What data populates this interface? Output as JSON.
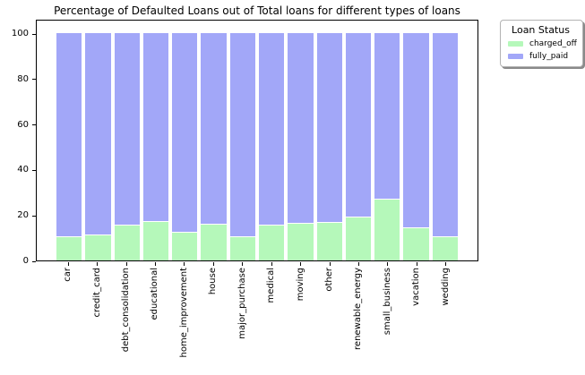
{
  "legend": {
    "title": "Loan Status",
    "items": [
      {
        "label": "charged_off",
        "color": "#b5f8ba"
      },
      {
        "label": "fully_paid",
        "color": "#a2a7f8"
      }
    ]
  },
  "axes": {
    "yticks": [
      0,
      20,
      40,
      60,
      80,
      100
    ]
  },
  "chart_data": {
    "type": "bar",
    "stacked": true,
    "normalized_percent": true,
    "title": "Percentage of Defaulted Loans out of Total loans for different types of loans",
    "xlabel": "",
    "ylabel": "",
    "grid": false,
    "legend_position": "upper-right-outside",
    "ylim": [
      0,
      106.4
    ],
    "categories": [
      "car",
      "credit_card",
      "debt_consolidation",
      "educational",
      "home_improvement",
      "house",
      "major_purchase",
      "medical",
      "moving",
      "other",
      "renewable_energy",
      "small_business",
      "vacation",
      "wedding"
    ],
    "series": [
      {
        "name": "charged_off",
        "color": "#b5f8ba",
        "values": [
          10.4,
          11.2,
          15.5,
          17.0,
          12.1,
          15.9,
          10.3,
          15.5,
          16.0,
          16.4,
          18.8,
          27.0,
          14.1,
          10.3
        ]
      },
      {
        "name": "fully_paid",
        "color": "#a2a7f8",
        "values": [
          89.6,
          88.8,
          84.5,
          83.0,
          87.9,
          84.1,
          89.7,
          84.5,
          84.0,
          83.6,
          81.2,
          73.0,
          85.9,
          89.7
        ]
      }
    ]
  }
}
